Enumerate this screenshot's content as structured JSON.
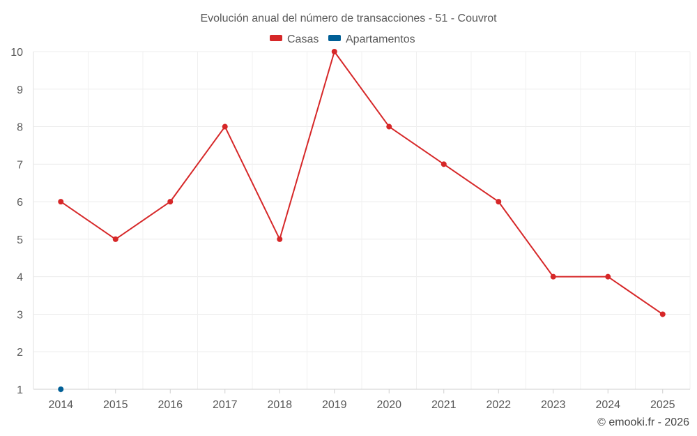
{
  "chart_data": {
    "type": "line",
    "title": "Evolución anual del número de transacciones - 51 - Couvrot",
    "categories": [
      "2014",
      "2015",
      "2016",
      "2017",
      "2018",
      "2019",
      "2020",
      "2021",
      "2022",
      "2023",
      "2024",
      "2025"
    ],
    "series": [
      {
        "name": "Casas",
        "color": "#d62728",
        "values": [
          6,
          5,
          6,
          8,
          5,
          10,
          8,
          7,
          6,
          4,
          4,
          3
        ]
      },
      {
        "name": "Apartamentos",
        "color": "#005f96",
        "values": [
          1,
          null,
          null,
          null,
          null,
          null,
          null,
          null,
          null,
          null,
          null,
          null
        ]
      }
    ],
    "ylim": [
      1,
      10
    ],
    "yticks": [
      1,
      2,
      3,
      4,
      5,
      6,
      7,
      8,
      9,
      10
    ],
    "xlabel": "",
    "ylabel": "",
    "grid": true,
    "legend": "top-center"
  },
  "credit": "© emooki.fr - 2026"
}
